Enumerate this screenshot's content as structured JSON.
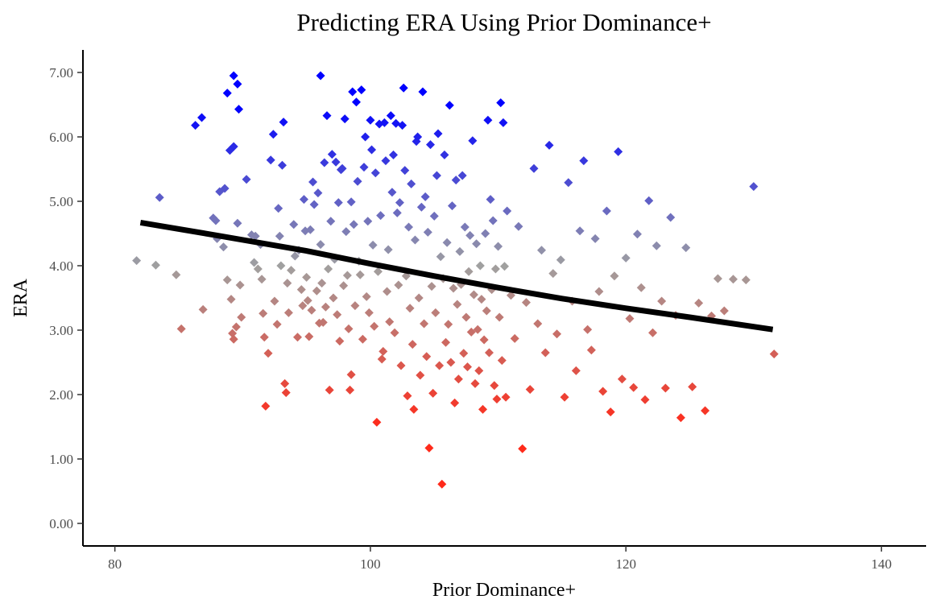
{
  "chart_data": {
    "type": "scatter",
    "title": "Predicting ERA Using Prior Dominance+",
    "xlabel": "Prior Dominance+",
    "ylabel": "ERA",
    "xlim": [
      77.5,
      143.5
    ],
    "ylim": [
      -0.35,
      7.35
    ],
    "x_ticks": [
      80,
      100,
      120,
      140
    ],
    "x_tick_labels": [
      "80",
      "100",
      "120",
      "140"
    ],
    "y_ticks": [
      0,
      1,
      2,
      3,
      4,
      5,
      6,
      7
    ],
    "y_tick_labels": [
      "0.00",
      "1.00",
      "2.00",
      "3.00",
      "4.00",
      "5.00",
      "6.00",
      "7.00"
    ],
    "grid": false,
    "legend": "none",
    "marker": "diamond",
    "color_scale": {
      "low": "#ff2a1a",
      "mid": "#a0a0a0",
      "high": "#0000ff",
      "domain": [
        1.5,
        4.0,
        6.5
      ]
    },
    "trend_line": {
      "color": "#000000",
      "x": [
        82,
        88,
        95,
        100,
        105,
        110,
        115,
        120,
        125,
        131.5
      ],
      "y": [
        4.67,
        4.47,
        4.23,
        4.03,
        3.84,
        3.66,
        3.49,
        3.34,
        3.2,
        3.01
      ]
    },
    "points": [
      [
        81.7,
        4.08
      ],
      [
        83.2,
        4.01
      ],
      [
        83.5,
        5.06
      ],
      [
        84.8,
        3.86
      ],
      [
        85.2,
        3.02
      ],
      [
        86.3,
        6.18
      ],
      [
        86.8,
        6.3
      ],
      [
        86.9,
        3.32
      ],
      [
        87.7,
        4.74
      ],
      [
        87.9,
        4.7
      ],
      [
        88.0,
        4.42
      ],
      [
        88.2,
        5.15
      ],
      [
        88.5,
        4.29
      ],
      [
        88.6,
        5.2
      ],
      [
        88.8,
        6.68
      ],
      [
        89.0,
        5.79
      ],
      [
        89.3,
        6.95
      ],
      [
        89.3,
        5.85
      ],
      [
        89.6,
        6.82
      ],
      [
        89.7,
        6.43
      ],
      [
        88.8,
        3.78
      ],
      [
        89.1,
        3.48
      ],
      [
        89.2,
        2.95
      ],
      [
        89.3,
        2.86
      ],
      [
        89.5,
        3.05
      ],
      [
        89.6,
        4.66
      ],
      [
        89.8,
        3.7
      ],
      [
        89.9,
        3.2
      ],
      [
        90.3,
        5.34
      ],
      [
        90.7,
        4.48
      ],
      [
        90.9,
        4.05
      ],
      [
        91.0,
        4.46
      ],
      [
        91.2,
        3.95
      ],
      [
        91.4,
        4.33
      ],
      [
        91.5,
        3.79
      ],
      [
        91.6,
        3.26
      ],
      [
        91.7,
        2.89
      ],
      [
        91.8,
        1.82
      ],
      [
        92.0,
        2.64
      ],
      [
        92.2,
        5.64
      ],
      [
        92.4,
        6.04
      ],
      [
        92.5,
        3.45
      ],
      [
        92.7,
        3.09
      ],
      [
        92.8,
        4.89
      ],
      [
        92.9,
        4.46
      ],
      [
        93.0,
        4.0
      ],
      [
        93.1,
        5.56
      ],
      [
        93.2,
        6.23
      ],
      [
        93.3,
        2.17
      ],
      [
        93.4,
        2.03
      ],
      [
        93.5,
        3.73
      ],
      [
        93.6,
        3.27
      ],
      [
        93.8,
        3.93
      ],
      [
        94.0,
        4.64
      ],
      [
        94.1,
        4.15
      ],
      [
        94.3,
        2.89
      ],
      [
        94.4,
        4.24
      ],
      [
        94.6,
        3.63
      ],
      [
        94.7,
        3.38
      ],
      [
        94.8,
        5.03
      ],
      [
        94.9,
        4.54
      ],
      [
        95.0,
        3.82
      ],
      [
        95.1,
        3.46
      ],
      [
        95.2,
        2.9
      ],
      [
        95.3,
        4.56
      ],
      [
        95.4,
        3.31
      ],
      [
        95.5,
        5.3
      ],
      [
        95.6,
        4.95
      ],
      [
        95.8,
        3.61
      ],
      [
        95.9,
        5.13
      ],
      [
        96.0,
        3.11
      ],
      [
        96.1,
        4.33
      ],
      [
        96.1,
        6.95
      ],
      [
        96.2,
        3.73
      ],
      [
        96.3,
        3.12
      ],
      [
        96.4,
        5.6
      ],
      [
        96.5,
        3.36
      ],
      [
        96.6,
        6.33
      ],
      [
        96.7,
        3.95
      ],
      [
        96.8,
        2.07
      ],
      [
        96.9,
        4.69
      ],
      [
        97.0,
        5.73
      ],
      [
        97.1,
        3.5
      ],
      [
        97.2,
        4.1
      ],
      [
        97.3,
        5.61
      ],
      [
        97.4,
        3.24
      ],
      [
        97.5,
        4.98
      ],
      [
        97.6,
        2.83
      ],
      [
        97.7,
        5.49
      ],
      [
        97.8,
        5.51
      ],
      [
        97.9,
        3.69
      ],
      [
        98.0,
        6.28
      ],
      [
        98.1,
        4.53
      ],
      [
        98.2,
        3.85
      ],
      [
        98.3,
        3.02
      ],
      [
        98.4,
        2.07
      ],
      [
        98.5,
        4.99
      ],
      [
        98.5,
        2.31
      ],
      [
        98.6,
        6.7
      ],
      [
        98.7,
        4.64
      ],
      [
        98.8,
        3.38
      ],
      [
        98.9,
        6.54
      ],
      [
        99.0,
        5.31
      ],
      [
        99.1,
        4.07
      ],
      [
        99.2,
        3.86
      ],
      [
        99.3,
        6.73
      ],
      [
        99.4,
        2.86
      ],
      [
        99.5,
        5.53
      ],
      [
        99.6,
        6.0
      ],
      [
        99.7,
        3.52
      ],
      [
        99.8,
        4.69
      ],
      [
        99.9,
        3.27
      ],
      [
        100.0,
        6.26
      ],
      [
        100.1,
        5.8
      ],
      [
        100.2,
        4.32
      ],
      [
        100.3,
        3.06
      ],
      [
        100.4,
        5.44
      ],
      [
        100.5,
        1.57
      ],
      [
        100.6,
        3.91
      ],
      [
        100.7,
        6.2
      ],
      [
        100.8,
        4.78
      ],
      [
        100.9,
        2.55
      ],
      [
        101.0,
        2.67
      ],
      [
        101.1,
        6.22
      ],
      [
        101.2,
        5.63
      ],
      [
        101.3,
        3.6
      ],
      [
        101.4,
        4.25
      ],
      [
        101.5,
        3.13
      ],
      [
        101.6,
        6.33
      ],
      [
        101.7,
        5.14
      ],
      [
        101.8,
        5.72
      ],
      [
        101.9,
        2.96
      ],
      [
        102.0,
        6.21
      ],
      [
        102.1,
        4.82
      ],
      [
        102.2,
        3.7
      ],
      [
        102.3,
        4.98
      ],
      [
        102.4,
        2.45
      ],
      [
        102.5,
        6.18
      ],
      [
        102.6,
        6.76
      ],
      [
        102.7,
        5.48
      ],
      [
        102.8,
        3.84
      ],
      [
        102.9,
        1.98
      ],
      [
        103.0,
        4.6
      ],
      [
        103.1,
        3.34
      ],
      [
        103.2,
        5.27
      ],
      [
        103.3,
        2.78
      ],
      [
        103.4,
        1.77
      ],
      [
        103.5,
        4.4
      ],
      [
        103.6,
        5.93
      ],
      [
        103.7,
        6.0
      ],
      [
        103.8,
        3.5
      ],
      [
        103.9,
        2.3
      ],
      [
        104.0,
        4.91
      ],
      [
        104.1,
        6.7
      ],
      [
        104.2,
        3.1
      ],
      [
        104.3,
        5.07
      ],
      [
        104.4,
        2.59
      ],
      [
        104.5,
        4.52
      ],
      [
        104.6,
        1.17
      ],
      [
        104.7,
        5.88
      ],
      [
        104.8,
        3.68
      ],
      [
        104.9,
        2.02
      ],
      [
        105.0,
        4.77
      ],
      [
        105.1,
        3.27
      ],
      [
        105.2,
        5.4
      ],
      [
        105.3,
        6.05
      ],
      [
        105.4,
        2.45
      ],
      [
        105.5,
        4.14
      ],
      [
        105.6,
        0.61
      ],
      [
        105.7,
        3.8
      ],
      [
        105.8,
        5.72
      ],
      [
        105.9,
        2.81
      ],
      [
        106.0,
        4.36
      ],
      [
        106.1,
        3.09
      ],
      [
        106.2,
        6.49
      ],
      [
        106.3,
        2.5
      ],
      [
        106.4,
        4.93
      ],
      [
        106.5,
        3.65
      ],
      [
        106.6,
        1.87
      ],
      [
        106.7,
        5.33
      ],
      [
        106.8,
        3.4
      ],
      [
        106.9,
        2.24
      ],
      [
        107.0,
        4.22
      ],
      [
        107.1,
        3.71
      ],
      [
        107.2,
        5.4
      ],
      [
        107.3,
        2.64
      ],
      [
        107.4,
        4.6
      ],
      [
        107.5,
        3.2
      ],
      [
        107.6,
        2.43
      ],
      [
        107.7,
        3.91
      ],
      [
        107.8,
        4.47
      ],
      [
        107.9,
        2.97
      ],
      [
        108.0,
        5.94
      ],
      [
        108.1,
        3.55
      ],
      [
        108.2,
        2.17
      ],
      [
        108.3,
        4.34
      ],
      [
        108.4,
        3.01
      ],
      [
        108.5,
        2.37
      ],
      [
        108.6,
        4.0
      ],
      [
        108.7,
        3.48
      ],
      [
        108.8,
        1.77
      ],
      [
        108.9,
        2.85
      ],
      [
        109.0,
        4.5
      ],
      [
        109.1,
        3.3
      ],
      [
        109.2,
        6.26
      ],
      [
        109.3,
        2.65
      ],
      [
        109.4,
        5.03
      ],
      [
        109.5,
        3.63
      ],
      [
        109.6,
        4.7
      ],
      [
        109.7,
        2.14
      ],
      [
        109.8,
        3.95
      ],
      [
        109.9,
        1.93
      ],
      [
        110.0,
        4.3
      ],
      [
        110.1,
        3.2
      ],
      [
        110.2,
        6.53
      ],
      [
        110.3,
        2.53
      ],
      [
        110.4,
        6.22
      ],
      [
        110.5,
        3.99
      ],
      [
        110.6,
        1.96
      ],
      [
        110.7,
        4.85
      ],
      [
        111.0,
        3.54
      ],
      [
        111.3,
        2.87
      ],
      [
        111.6,
        4.61
      ],
      [
        111.9,
        1.16
      ],
      [
        112.2,
        3.43
      ],
      [
        112.5,
        2.08
      ],
      [
        112.8,
        5.51
      ],
      [
        113.1,
        3.1
      ],
      [
        113.4,
        4.24
      ],
      [
        113.7,
        2.65
      ],
      [
        114.0,
        5.87
      ],
      [
        114.3,
        3.88
      ],
      [
        114.6,
        2.94
      ],
      [
        114.9,
        4.09
      ],
      [
        115.2,
        1.96
      ],
      [
        115.5,
        5.29
      ],
      [
        115.8,
        3.45
      ],
      [
        116.1,
        2.37
      ],
      [
        116.4,
        4.54
      ],
      [
        116.7,
        5.63
      ],
      [
        117.0,
        3.01
      ],
      [
        117.3,
        2.69
      ],
      [
        117.6,
        4.42
      ],
      [
        117.9,
        3.6
      ],
      [
        118.2,
        2.05
      ],
      [
        118.5,
        4.85
      ],
      [
        118.8,
        1.73
      ],
      [
        119.1,
        3.84
      ],
      [
        119.4,
        5.77
      ],
      [
        119.7,
        2.24
      ],
      [
        120.0,
        4.12
      ],
      [
        120.3,
        3.18
      ],
      [
        120.6,
        2.11
      ],
      [
        120.9,
        4.49
      ],
      [
        121.2,
        3.66
      ],
      [
        121.5,
        1.92
      ],
      [
        121.8,
        5.01
      ],
      [
        122.1,
        2.96
      ],
      [
        122.4,
        4.31
      ],
      [
        122.8,
        3.45
      ],
      [
        123.1,
        2.1
      ],
      [
        123.5,
        4.75
      ],
      [
        123.9,
        3.23
      ],
      [
        124.3,
        1.64
      ],
      [
        124.7,
        4.28
      ],
      [
        125.2,
        2.12
      ],
      [
        125.7,
        3.42
      ],
      [
        126.2,
        1.75
      ],
      [
        126.7,
        3.22
      ],
      [
        127.2,
        3.8
      ],
      [
        127.7,
        3.3
      ],
      [
        128.4,
        3.79
      ],
      [
        129.4,
        3.78
      ],
      [
        130.0,
        5.23
      ],
      [
        131.6,
        2.63
      ]
    ]
  }
}
